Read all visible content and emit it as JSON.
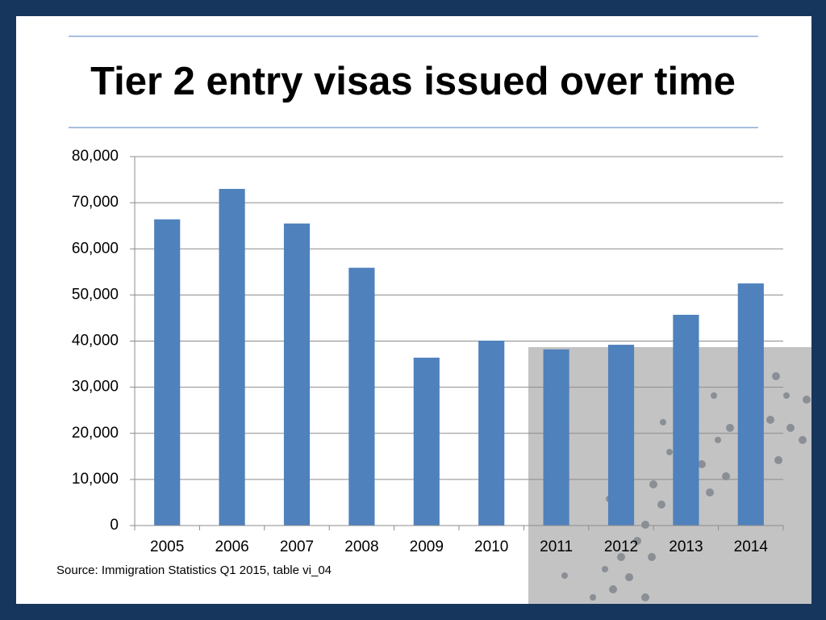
{
  "chart_data": {
    "type": "bar",
    "title": "Tier 2 entry visas issued over time",
    "categories": [
      "2005",
      "2006",
      "2007",
      "2008",
      "2009",
      "2010",
      "2011",
      "2012",
      "2013",
      "2014"
    ],
    "values": [
      66400,
      73000,
      65500,
      55900,
      36400,
      40100,
      38200,
      39200,
      45700,
      52500
    ],
    "color": "#4f81bd",
    "ylim": [
      0,
      80000
    ],
    "yticks": [
      0,
      {
        "value": 10000,
        "label": "10,000"
      },
      {
        "value": 20000,
        "label": "20,000"
      },
      {
        "value": 30000,
        "label": "30,000"
      },
      {
        "value": 40000,
        "label": "40,000"
      },
      {
        "value": 50000,
        "label": "50,000"
      },
      {
        "value": 60000,
        "label": "60,000"
      },
      {
        "value": 70000,
        "label": "70,000"
      },
      {
        "value": 80000,
        "label": "80,000"
      }
    ],
    "grid": true,
    "source": "Source: Immigration Statistics Q1 2015, table  vi_04"
  }
}
